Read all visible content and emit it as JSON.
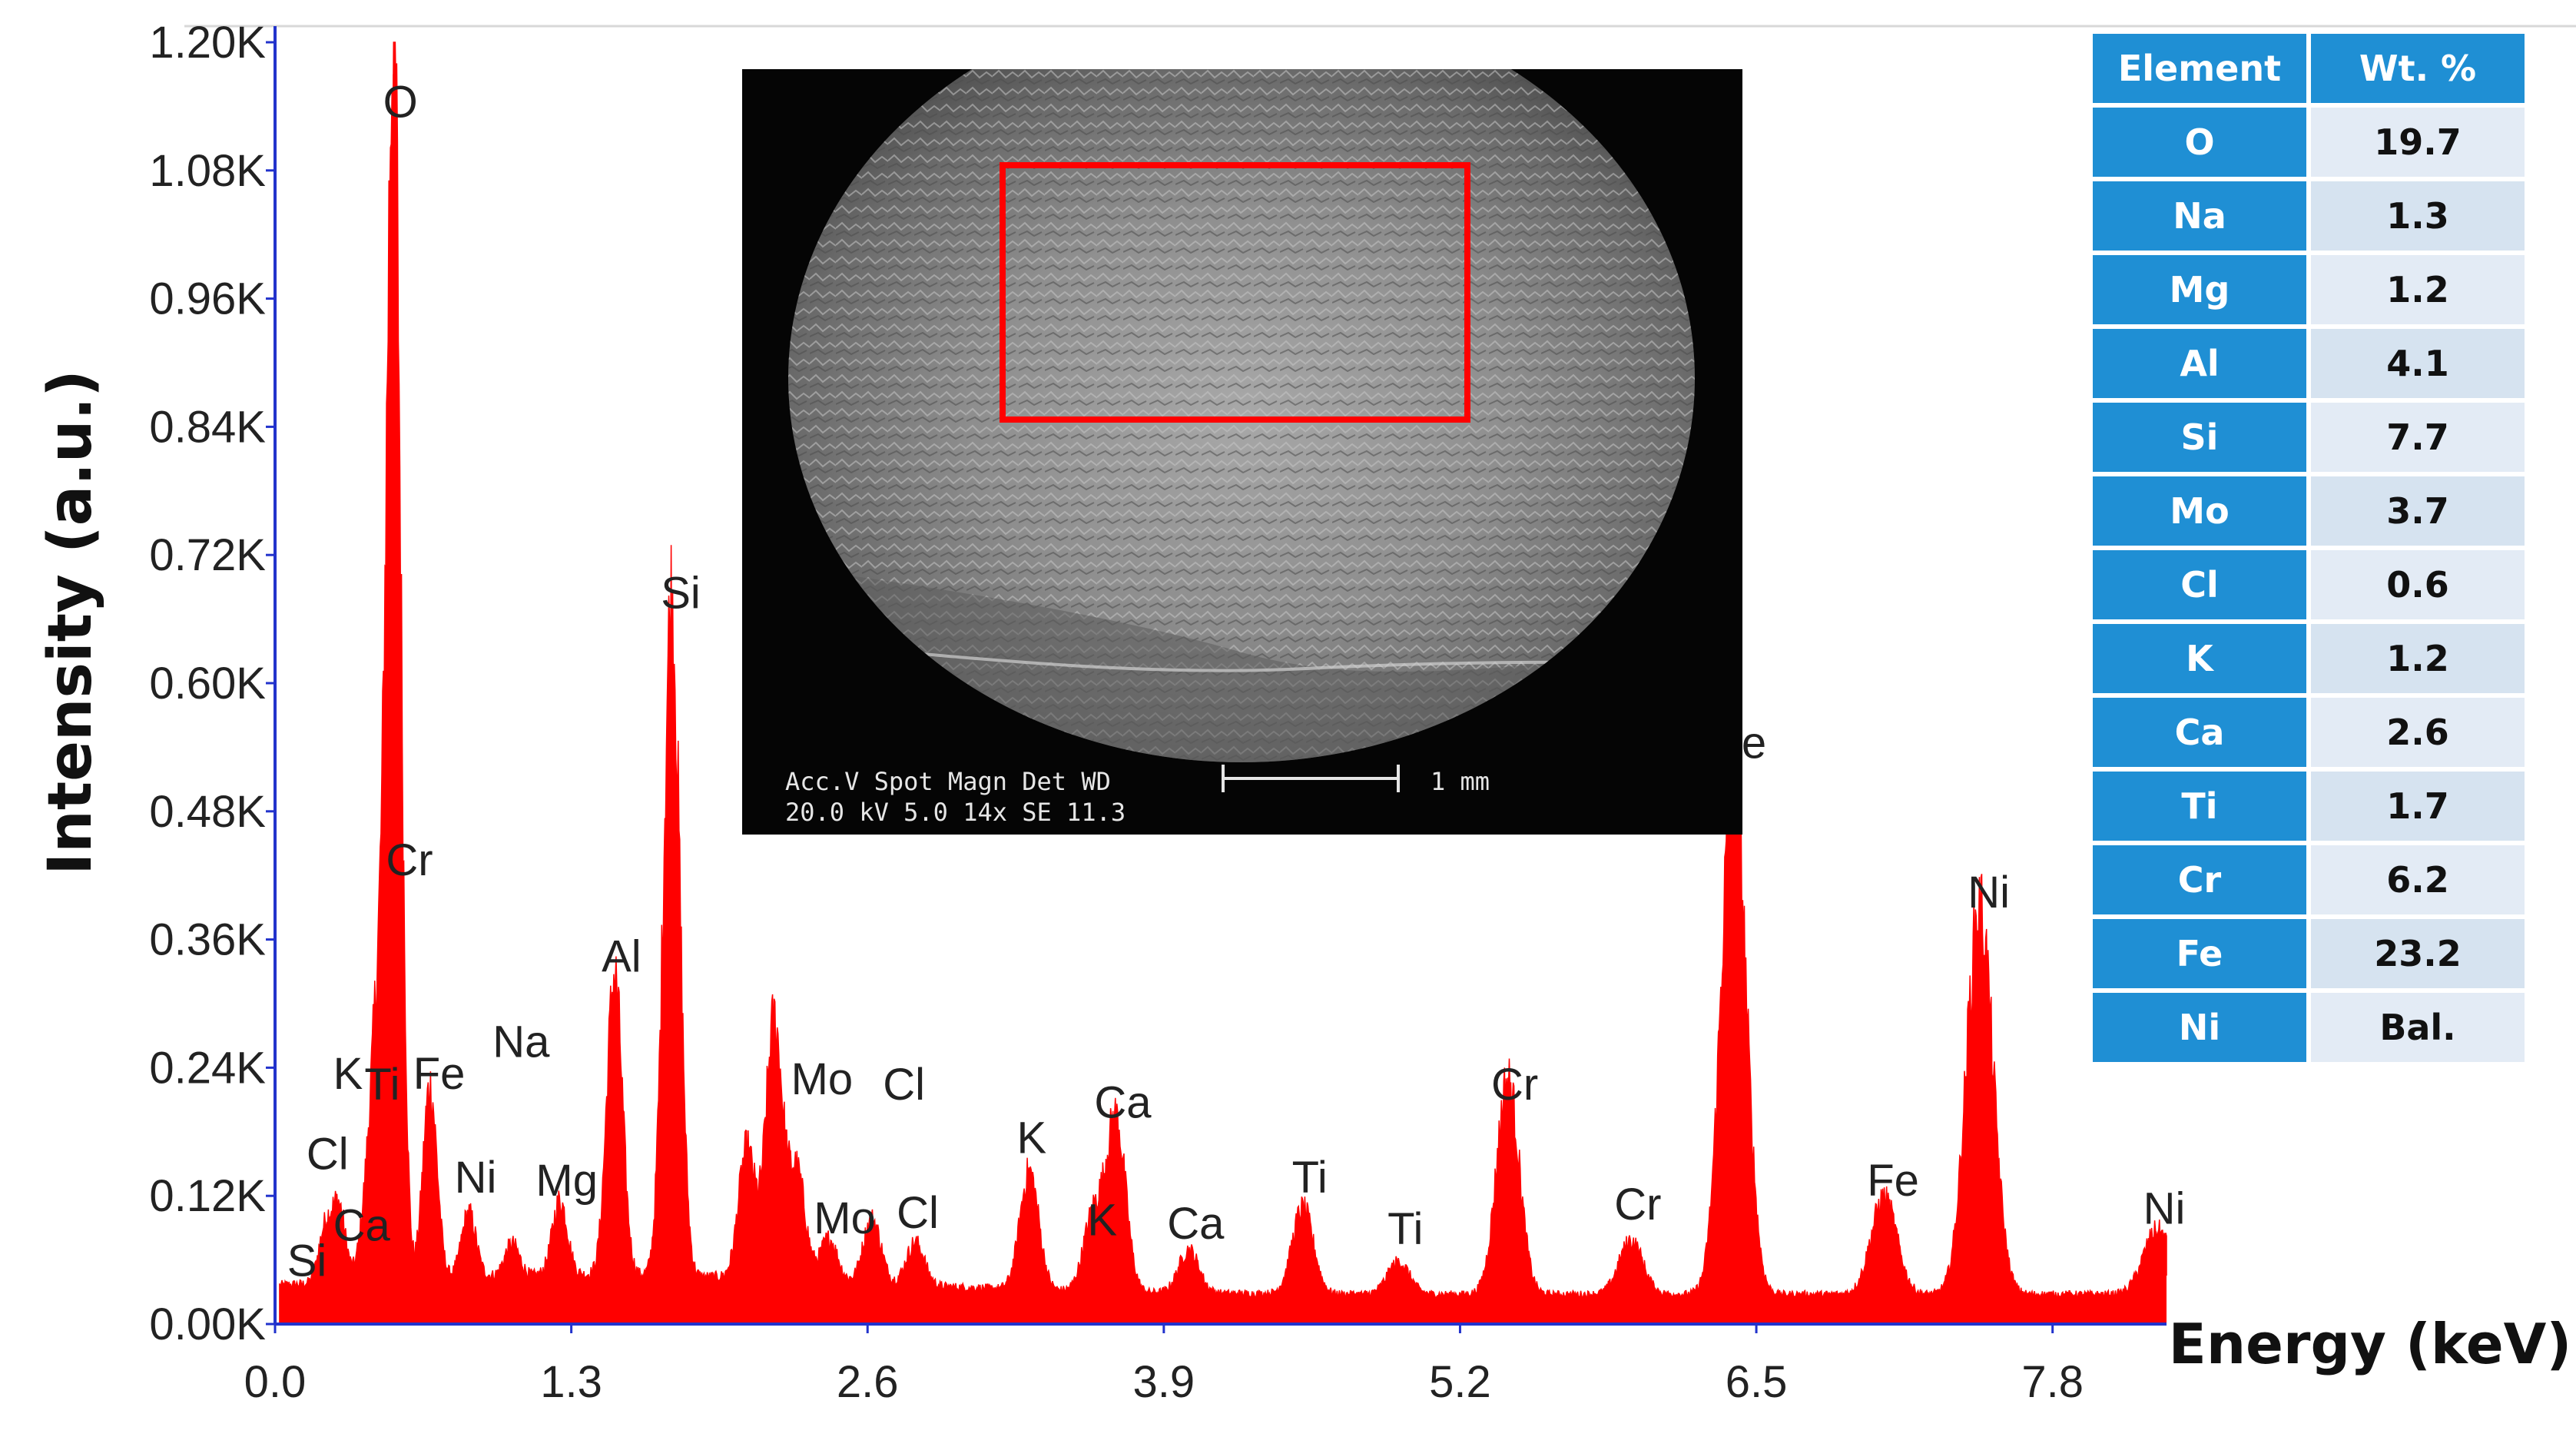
{
  "chart_data": {
    "type": "line",
    "xlabel": "Energy (keV)",
    "ylabel": "Intensity (a.u.)",
    "xlim": [
      0,
      8.3
    ],
    "ylim": [
      0,
      1.2
    ],
    "x_ticks": [
      "0.0",
      "1.3",
      "2.6",
      "3.9",
      "5.2",
      "6.5",
      "7.8"
    ],
    "y_ticks": [
      "0.00K",
      "0.12K",
      "0.24K",
      "0.36K",
      "0.48K",
      "0.60K",
      "0.72K",
      "0.84K",
      "0.96K",
      "1.08K",
      "1.20K"
    ],
    "color": "#ff0000",
    "peaks": [
      {
        "x": 0.52,
        "y": 1.17
      },
      {
        "x": 0.22,
        "y": 0.05
      },
      {
        "x": 0.28,
        "y": 0.07
      },
      {
        "x": 0.4,
        "y": 0.06
      },
      {
        "x": 0.45,
        "y": 0.22
      },
      {
        "x": 0.68,
        "y": 0.18
      },
      {
        "x": 0.85,
        "y": 0.06
      },
      {
        "x": 1.04,
        "y": 0.03
      },
      {
        "x": 1.25,
        "y": 0.07
      },
      {
        "x": 1.49,
        "y": 0.28
      },
      {
        "x": 1.74,
        "y": 0.63
      },
      {
        "x": 2.07,
        "y": 0.12
      },
      {
        "x": 2.19,
        "y": 0.24
      },
      {
        "x": 2.29,
        "y": 0.1
      },
      {
        "x": 2.43,
        "y": 0.04
      },
      {
        "x": 2.62,
        "y": 0.06
      },
      {
        "x": 2.81,
        "y": 0.04
      },
      {
        "x": 3.31,
        "y": 0.11
      },
      {
        "x": 3.59,
        "y": 0.07
      },
      {
        "x": 3.69,
        "y": 0.16
      },
      {
        "x": 4.01,
        "y": 0.04
      },
      {
        "x": 4.51,
        "y": 0.08
      },
      {
        "x": 4.93,
        "y": 0.03
      },
      {
        "x": 5.41,
        "y": 0.2
      },
      {
        "x": 5.95,
        "y": 0.05
      },
      {
        "x": 6.4,
        "y": 0.49
      },
      {
        "x": 7.06,
        "y": 0.09
      },
      {
        "x": 7.48,
        "y": 0.36
      },
      {
        "x": 8.26,
        "y": 0.06
      }
    ],
    "annotations": [
      {
        "text": "O",
        "x": 0.55,
        "y": 1.13
      },
      {
        "text": "Cr",
        "x": 0.59,
        "y": 0.42
      },
      {
        "text": "K",
        "x": 0.32,
        "y": 0.22
      },
      {
        "text": "Ti",
        "x": 0.47,
        "y": 0.21
      },
      {
        "text": "Fe",
        "x": 0.72,
        "y": 0.22
      },
      {
        "text": "Na",
        "x": 1.08,
        "y": 0.25
      },
      {
        "text": "Cl",
        "x": 0.23,
        "y": 0.145
      },
      {
        "text": "Ni",
        "x": 0.88,
        "y": 0.123
      },
      {
        "text": "Mg",
        "x": 1.28,
        "y": 0.12
      },
      {
        "text": "Ca",
        "x": 0.38,
        "y": 0.078
      },
      {
        "text": "Si",
        "x": 0.14,
        "y": 0.045
      },
      {
        "text": "Al",
        "x": 1.52,
        "y": 0.33
      },
      {
        "text": "Si",
        "x": 1.78,
        "y": 0.67
      },
      {
        "text": "Mo",
        "x": 2.4,
        "y": 0.215
      },
      {
        "text": "Cl",
        "x": 2.76,
        "y": 0.21
      },
      {
        "text": "Mo",
        "x": 2.5,
        "y": 0.085
      },
      {
        "text": "Cl",
        "x": 2.82,
        "y": 0.09
      },
      {
        "text": "K",
        "x": 3.32,
        "y": 0.16
      },
      {
        "text": "Ca",
        "x": 3.72,
        "y": 0.193
      },
      {
        "text": "K",
        "x": 3.63,
        "y": 0.083
      },
      {
        "text": "Ca",
        "x": 4.04,
        "y": 0.08
      },
      {
        "text": "Ti",
        "x": 4.54,
        "y": 0.123
      },
      {
        "text": "Ti",
        "x": 4.96,
        "y": 0.075
      },
      {
        "text": "Cr",
        "x": 5.44,
        "y": 0.21
      },
      {
        "text": "Cr",
        "x": 5.98,
        "y": 0.098
      },
      {
        "text": "Fe",
        "x": 6.43,
        "y": 0.53
      },
      {
        "text": "Fe",
        "x": 7.1,
        "y": 0.12
      },
      {
        "text": "Ni",
        "x": 7.52,
        "y": 0.39
      },
      {
        "text": "Ni",
        "x": 8.29,
        "y": 0.094
      }
    ]
  },
  "sem_image": {
    "caption_line1": "Acc.V   Spot Magn    Det  WD",
    "caption_line2": "20.0 kV 5.0   14x     SE   11.3",
    "scale_label": "1 mm",
    "roi_color": "#ff0000"
  },
  "table": {
    "headers": [
      "Element",
      "Wt. %"
    ],
    "rows": [
      [
        "O",
        "19.7"
      ],
      [
        "Na",
        "1.3"
      ],
      [
        "Mg",
        "1.2"
      ],
      [
        "Al",
        "4.1"
      ],
      [
        "Si",
        "7.7"
      ],
      [
        "Mo",
        "3.7"
      ],
      [
        "Cl",
        "0.6"
      ],
      [
        "K",
        "1.2"
      ],
      [
        "Ca",
        "2.6"
      ],
      [
        "Ti",
        "1.7"
      ],
      [
        "Cr",
        "6.2"
      ],
      [
        "Fe",
        "23.2"
      ],
      [
        "Ni",
        "Bal."
      ]
    ]
  }
}
